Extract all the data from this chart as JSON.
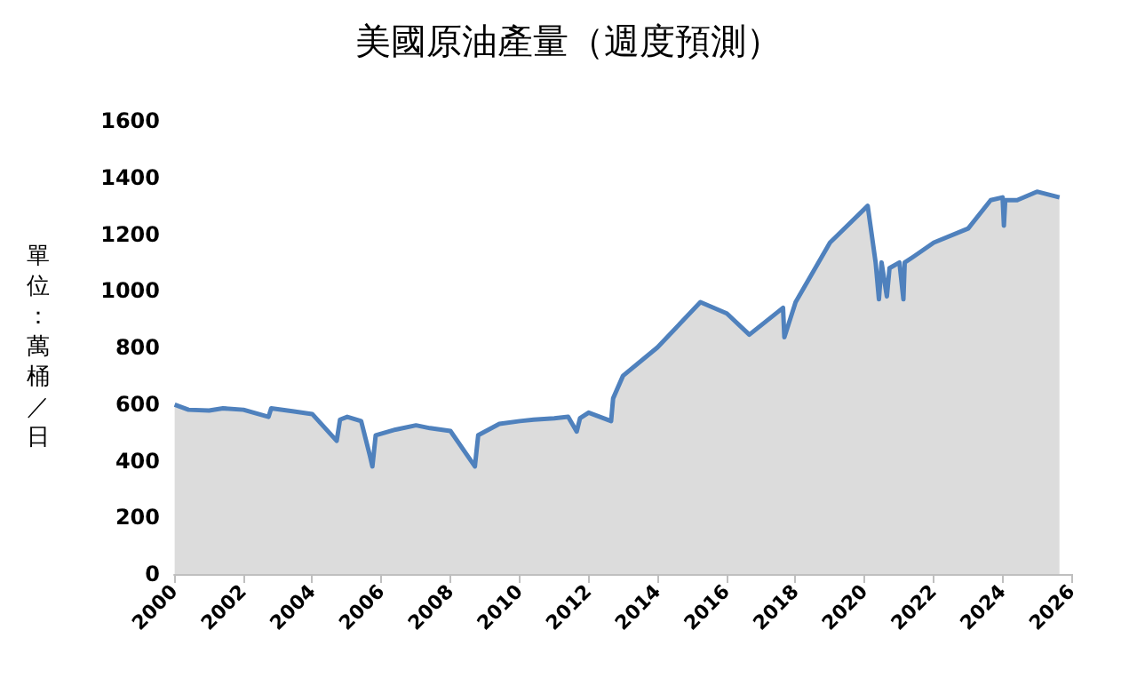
{
  "chart_data": {
    "type": "area",
    "title": "美國原油產量（週度預測）",
    "ylabel": "單位：萬桶／日",
    "x": [
      "2000-01-07",
      "2000-06-02",
      "2001-01-05",
      "2001-06-01",
      "2002-01-04",
      "2002-09-27",
      "2002-10-25",
      "2003-06-06",
      "2004-01-02",
      "2004-09-17",
      "2004-10-22",
      "2005-01-07",
      "2005-06-03",
      "2005-09-02",
      "2005-09-30",
      "2005-11-04",
      "2006-06-02",
      "2007-01-05",
      "2007-06-01",
      "2008-01-04",
      "2008-09-19",
      "2008-10-24",
      "2009-06-05",
      "2010-01-08",
      "2010-06-04",
      "2011-01-07",
      "2011-06-03",
      "2011-09-02",
      "2011-10-07",
      "2012-01-06",
      "2012-08-31",
      "2012-09-21",
      "2013-01-04",
      "2014-01-03",
      "2015-04-03",
      "2016-01-08",
      "2016-09-02",
      "2017-08-25",
      "2017-09-08",
      "2018-01-05",
      "2019-01-04",
      "2020-02-07",
      "2020-05-01",
      "2020-06-05",
      "2020-07-03",
      "2020-08-28",
      "2020-09-25",
      "2021-01-08",
      "2021-02-19",
      "2021-03-05",
      "2021-06-04",
      "2022-01-07",
      "2023-01-06",
      "2023-09-01",
      "2024-01-05",
      "2024-01-19",
      "2024-02-02",
      "2024-06-07",
      "2025-01-03",
      "2025-08-29"
    ],
    "series": [
      {
        "color": "#4f81bd",
        "values": [
          598,
          580,
          577,
          585,
          580,
          555,
          585,
          575,
          565,
          470,
          545,
          555,
          540,
          420,
          380,
          490,
          510,
          525,
          515,
          505,
          380,
          490,
          530,
          540,
          545,
          550,
          555,
          503,
          550,
          570,
          540,
          620,
          700,
          800,
          960,
          920,
          845,
          940,
          836,
          960,
          1170,
          1300,
          1100,
          970,
          1100,
          980,
          1080,
          1100,
          970,
          1100,
          1120,
          1170,
          1220,
          1320,
          1330,
          1230,
          1320,
          1320,
          1350,
          1330
        ]
      }
    ],
    "ylim": [
      0,
      1600
    ],
    "yticks": [
      0,
      200,
      400,
      600,
      800,
      1000,
      1200,
      1400,
      1600
    ],
    "xlim": [
      "2000",
      "2026"
    ],
    "xticks": [
      "2000",
      "2002",
      "2004",
      "2006",
      "2008",
      "2010",
      "2012",
      "2014",
      "2016",
      "2018",
      "2020",
      "2022",
      "2024",
      "2026"
    ],
    "grid": false
  }
}
